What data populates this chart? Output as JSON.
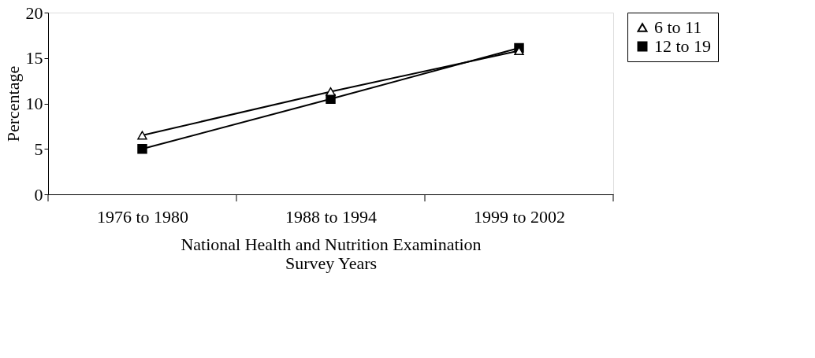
{
  "chart_data": {
    "type": "line",
    "xlabel": "National Health and Nutrition Examination Survey Years",
    "ylabel": "Percentage",
    "categories": [
      "1976 to 1980",
      "1988 to 1994",
      "1999 to 2002"
    ],
    "series": [
      {
        "name": "6 to 11",
        "color": "#000000",
        "marker": "triangle",
        "values": [
          6.5,
          11.3,
          15.8
        ]
      },
      {
        "name": "12 to 19",
        "color": "#000000",
        "marker": "square",
        "values": [
          5.0,
          10.5,
          16.1
        ]
      }
    ],
    "ylim": [
      0,
      20
    ],
    "yticks": [
      0,
      5,
      10,
      15,
      20
    ],
    "grid": false,
    "legend": "right",
    "line_style": "solid"
  }
}
